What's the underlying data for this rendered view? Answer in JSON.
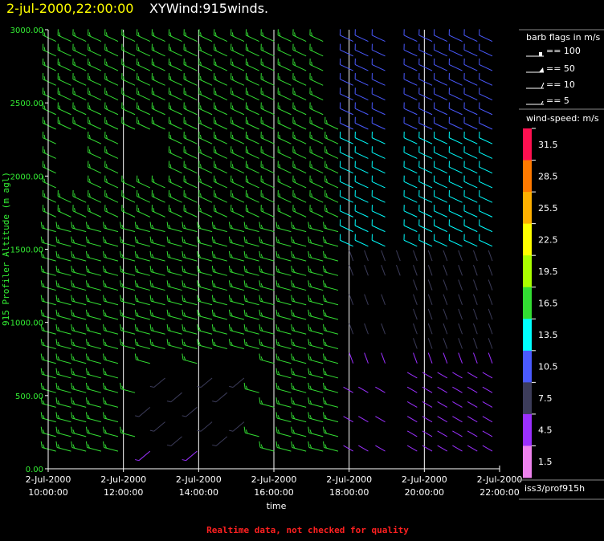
{
  "title": {
    "time": "2-jul-2000,22:00:00",
    "name": "XYWind:915winds."
  },
  "colors": {
    "ylabel": "#33ee33",
    "axis": "#ffffff",
    "note": "#ff2020",
    "title_time": "#ffff00"
  },
  "legend": {
    "flags_title": "barb flags in m/s",
    "flags": [
      "== 100",
      "== 50",
      "== 10",
      "== 5"
    ],
    "speed_title": "wind-speed: m/s",
    "speed_bins": [
      {
        "label": "31.5",
        "color": "#ff1050"
      },
      {
        "label": "28.5",
        "color": "#ff7a00"
      },
      {
        "label": "25.5",
        "color": "#ffb000"
      },
      {
        "label": "22.5",
        "color": "#ffff00"
      },
      {
        "label": "19.5",
        "color": "#aaff00"
      },
      {
        "label": "16.5",
        "color": "#33dd33"
      },
      {
        "label": "13.5",
        "color": "#00ffff"
      },
      {
        "label": "10.5",
        "color": "#4a5aff"
      },
      {
        "label": "7.5",
        "color": "#3c3c5a"
      },
      {
        "label": "4.5",
        "color": "#9b30ff"
      },
      {
        "label": "1.5",
        "color": "#ee82ee"
      }
    ]
  },
  "source": "iss3/prof915h",
  "note": "Realtime data, not checked for quality",
  "chart_data": {
    "type": "wind-barb",
    "xlabel": "time",
    "ylabel": "915 Profiler Altitude (m agl)",
    "xlim": [
      "2-Jul-2000 10:00:00",
      "2-Jul-2000 22:00:00"
    ],
    "ylim": [
      0,
      3000
    ],
    "yticks": [
      "0.00",
      "500.00",
      "1000.00",
      "1500.00",
      "2000.00",
      "2500.00",
      "3000.00"
    ],
    "xticks": [
      {
        "date": "2-Jul-2000",
        "time": "10:00:00"
      },
      {
        "date": "2-Jul-2000",
        "time": "12:00:00"
      },
      {
        "date": "2-Jul-2000",
        "time": "14:00:00"
      },
      {
        "date": "2-Jul-2000",
        "time": "16:00:00"
      },
      {
        "date": "2-Jul-2000",
        "time": "18:00:00"
      },
      {
        "date": "2-Jul-2000",
        "time": "20:00:00"
      },
      {
        "date": "2-Jul-2000",
        "time": "22:00:00"
      }
    ],
    "vertical_gridlines_hours": [
      12,
      14,
      16,
      18,
      20
    ],
    "profile_times_hours": [
      10.25,
      10.65,
      11.05,
      11.45,
      11.9,
      12.35,
      12.75,
      13.15,
      13.6,
      14.0,
      14.4,
      14.8,
      15.25,
      15.65,
      16.05,
      16.5,
      16.9,
      17.35,
      17.75,
      18.15,
      18.55,
      19.0,
      19.4,
      19.85,
      20.25,
      20.65,
      21.05,
      21.45,
      21.85
    ],
    "altitudes_m": [
      120,
      220,
      320,
      420,
      520,
      620,
      720,
      820,
      920,
      1020,
      1120,
      1220,
      1320,
      1420,
      1520,
      1620,
      1720,
      1820,
      1920,
      2020,
      2120,
      2220,
      2320,
      2420,
      2520,
      2620,
      2720,
      2820,
      2920
    ],
    "speed_regimes_ms": [
      {
        "time_range": [
          "10:00",
          "14:00"
        ],
        "alt_range_m": [
          0,
          1700
        ],
        "speed_ms": 18,
        "dir_deg": 290
      },
      {
        "time_range": [
          "10:00",
          "18:00"
        ],
        "alt_range_m": [
          1700,
          3000
        ],
        "speed_ms": 17,
        "dir_deg": 295
      },
      {
        "time_range": [
          "14:00",
          "18:00"
        ],
        "alt_range_m": [
          0,
          1700
        ],
        "speed_ms": 16,
        "dir_deg": 290
      },
      {
        "time_range": [
          "18:00",
          "22:00"
        ],
        "alt_range_m": [
          1500,
          3000
        ],
        "speed_ms": 12,
        "dir_deg": 300
      },
      {
        "time_range": [
          "18:00",
          "22:00"
        ],
        "alt_range_m": [
          0,
          1500
        ],
        "speed_ms": 5,
        "dir_deg": 340
      },
      {
        "time_range": [
          "12:30",
          "15:30"
        ],
        "alt_range_m": [
          0,
          700
        ],
        "speed_ms": 6,
        "dir_deg": 230
      }
    ]
  }
}
